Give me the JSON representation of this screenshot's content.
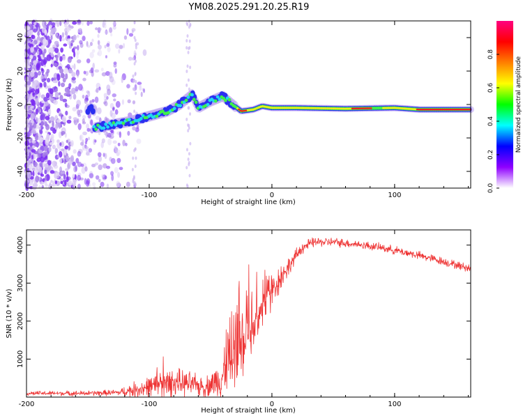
{
  "title": "YM08.2025.291.20.25.R19",
  "chart_data": [
    {
      "type": "heatmap",
      "name": "spectrogram",
      "xlabel": "Height of straight line (km)",
      "ylabel": "Frequency (Hz)",
      "xlim": [
        -200,
        162
      ],
      "ylim": [
        -50,
        50
      ],
      "xticks": [
        -200,
        -100,
        0,
        100
      ],
      "yticks": [
        -40,
        -20,
        0,
        20,
        40
      ],
      "ridge": [
        {
          "x": -145,
          "y": -14
        },
        {
          "x": -130,
          "y": -12
        },
        {
          "x": -115,
          "y": -10
        },
        {
          "x": -100,
          "y": -7
        },
        {
          "x": -85,
          "y": -4
        },
        {
          "x": -75,
          "y": 0
        },
        {
          "x": -65,
          "y": 6
        },
        {
          "x": -60,
          "y": -2
        },
        {
          "x": -50,
          "y": 2
        },
        {
          "x": -40,
          "y": 5
        },
        {
          "x": -32,
          "y": 0
        },
        {
          "x": -25,
          "y": -4
        },
        {
          "x": -15,
          "y": -3
        },
        {
          "x": -8,
          "y": -1
        },
        {
          "x": 0,
          "y": -2
        },
        {
          "x": 20,
          "y": -2
        },
        {
          "x": 60,
          "y": -2.5
        },
        {
          "x": 100,
          "y": -2
        },
        {
          "x": 120,
          "y": -3
        },
        {
          "x": 162,
          "y": -3
        }
      ],
      "colorbar": {
        "label": "Normalized spectral amplitude",
        "range": [
          0,
          1
        ],
        "ticks": [
          "0.0",
          "0.2",
          "0.4",
          "0.6",
          "0.8"
        ],
        "colors": [
          "#ffffff",
          "#8f00ff",
          "#0000ff",
          "#00ffff",
          "#00ff00",
          "#ffff00",
          "#ff8000",
          "#ff0000",
          "#ff0080"
        ]
      }
    },
    {
      "type": "line",
      "name": "snr",
      "xlabel": "Height of straight line (km)",
      "ylabel": "SNR (10 * v/v)",
      "xlim": [
        -200,
        162
      ],
      "ylim": [
        0,
        4400
      ],
      "xticks": [
        -200,
        -100,
        0,
        100
      ],
      "yticks": [
        1000,
        2000,
        3000,
        4000
      ],
      "color": "#ee3333",
      "envelope": {
        "x": [
          -200,
          -150,
          -125,
          -110,
          -95,
          -80,
          -65,
          -55,
          -45,
          -35,
          -25,
          -15,
          -5,
          5,
          15,
          25,
          35,
          50,
          70,
          90,
          110,
          130,
          150,
          162
        ],
        "base": [
          100,
          100,
          120,
          200,
          300,
          400,
          330,
          260,
          420,
          700,
          1300,
          1950,
          2550,
          3050,
          3500,
          3950,
          4080,
          4080,
          4020,
          3930,
          3800,
          3650,
          3480,
          3380
        ],
        "amp": [
          70,
          80,
          100,
          280,
          380,
          430,
          380,
          300,
          500,
          900,
          1250,
          1000,
          700,
          500,
          260,
          200,
          150,
          140,
          130,
          130,
          130,
          130,
          130,
          130
        ]
      }
    }
  ]
}
